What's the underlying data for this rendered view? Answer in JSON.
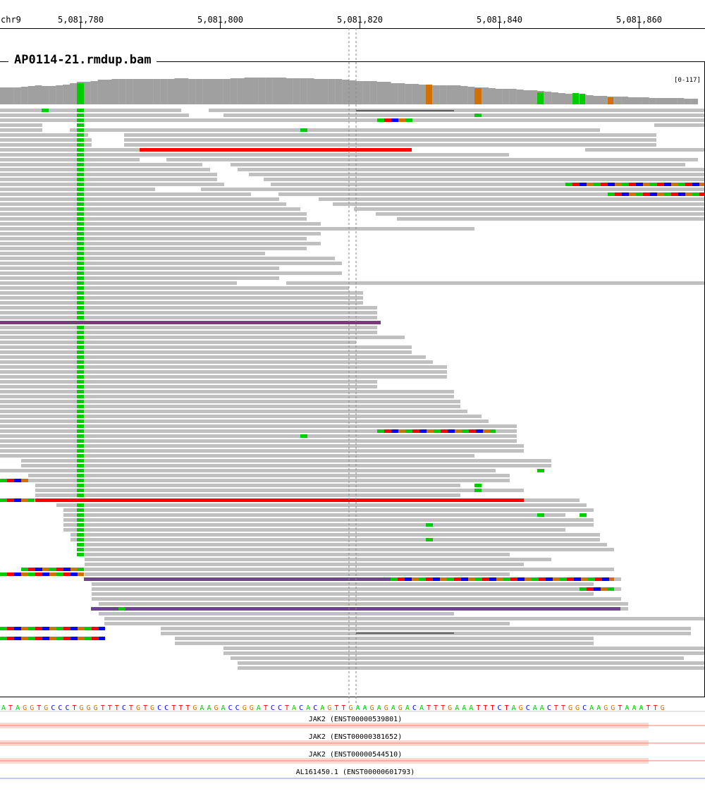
{
  "ruler": {
    "chromosome": "chr9",
    "ticks": [
      "5,081,780",
      "5,081,800",
      "5,081,820",
      "5,081,840",
      "5,081,860"
    ]
  },
  "track": {
    "title": "AP0114-21.rmdup.bam",
    "range": "[0-117]"
  },
  "reference_sequence": "ATAGGTGCCCTGGGTTTCTGTGCCTTTGAAGACCGGATCCTACACAGTTGAAGAGAGACATTTGAAATTTCTAGCAACTTGGCAAGGTAAATTG",
  "genes": [
    {
      "label": "JAK2 (ENST00000539801)"
    },
    {
      "label": "JAK2 (ENST00000381652)"
    },
    {
      "label": "JAK2 (ENST00000544510)"
    },
    {
      "label": "AL161450.1 (ENST00000601793)"
    }
  ],
  "colors": {
    "A": "#00cc00",
    "C": "#0000ff",
    "G": "#d17105",
    "T": "#ff0000",
    "read": "#c0c0c0",
    "coverage": "#a0a0a0",
    "transcript": "#fa8072",
    "lnc": "#8888ff"
  }
}
